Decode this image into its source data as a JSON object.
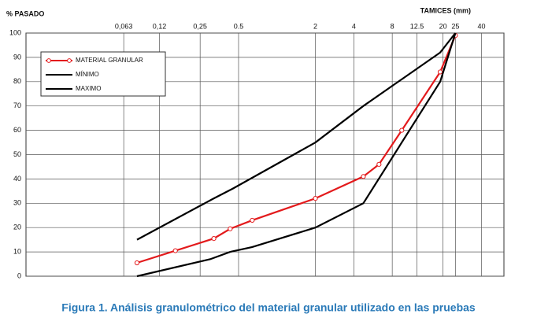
{
  "chart_data": {
    "type": "line",
    "caption": "Figura 1. Análisis granulométrico del material granular utilizado en las pruebas",
    "y_label": "% PASADO",
    "x_label": "TAMICES (mm)",
    "x_log": true,
    "grid": true,
    "xlim": [
      0.0108,
      60
    ],
    "ylim": [
      0,
      100
    ],
    "xticks": [
      {
        "value": 0.063,
        "label": "0,063"
      },
      {
        "value": 0.12,
        "label": "0,12"
      },
      {
        "value": 0.25,
        "label": "0,25"
      },
      0.5,
      2,
      4,
      8,
      12.5,
      20,
      25,
      40
    ],
    "yticks": [
      0,
      10,
      20,
      30,
      40,
      50,
      60,
      70,
      80,
      90,
      100
    ],
    "series": [
      {
        "name": "MATERIAL GRANULAR",
        "color": "#e31a1c",
        "markers": true,
        "x": [
          0.08,
          0.16,
          0.32,
          0.43,
          0.64,
          2,
          4.75,
          6.3,
          9.5,
          19,
          25
        ],
        "values": [
          5.5,
          10.5,
          15.5,
          19.5,
          23,
          32,
          41,
          46,
          60,
          84,
          99
        ]
      },
      {
        "name": "MÍNIMO",
        "color": "#000000",
        "markers": false,
        "x": [
          0.08,
          0.3,
          0.43,
          0.64,
          2,
          4.75,
          19,
          25
        ],
        "values": [
          0,
          7,
          10,
          12,
          20,
          30,
          80,
          100
        ]
      },
      {
        "name": "MAXIMO",
        "color": "#000000",
        "markers": false,
        "x": [
          0.08,
          0.32,
          0.45,
          2,
          4.75,
          19,
          25
        ],
        "values": [
          15,
          32,
          36,
          55,
          70,
          92,
          100
        ]
      }
    ]
  }
}
